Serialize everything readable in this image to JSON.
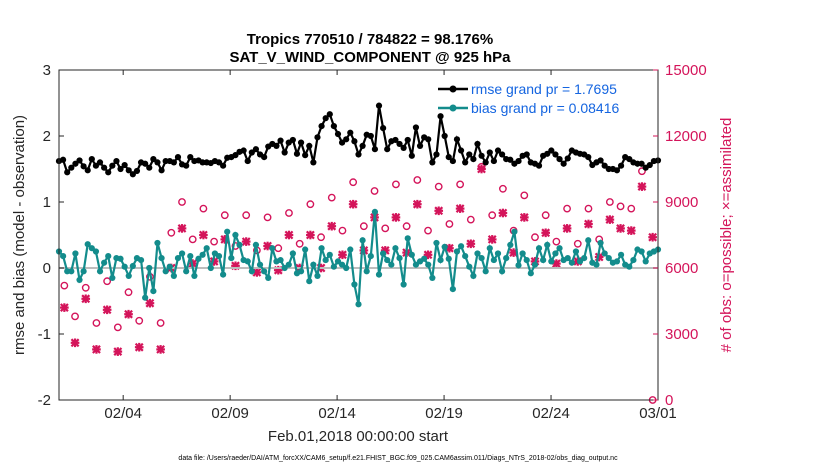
{
  "chart_data": {
    "type": "line",
    "title": "Tropics 770510 / 784822 = 98.176%",
    "subtitle": "SAT_V_WIND_COMPONENT @ 925 hPa",
    "xlabel": "Feb.01,2018 00:00:00 start",
    "ylabel": "rmse and bias (model - observation)",
    "ylabel_right": "# of obs: o=possible; ×=assimilated",
    "xlim": [
      1,
      29
    ],
    "ylim": [
      -2,
      3
    ],
    "ylim_right": [
      0,
      15000
    ],
    "x_tick_values": [
      4,
      9,
      14,
      19,
      24,
      29
    ],
    "x_tick_labels": [
      "02/04",
      "02/09",
      "02/14",
      "02/19",
      "02/24",
      "03/01"
    ],
    "y_ticks": [
      "-2",
      "-1",
      "0",
      "1",
      "2",
      "3"
    ],
    "y_ticks_right": [
      "0",
      "3000",
      "6000",
      "9000",
      "12000",
      "15000"
    ],
    "footnote": "data file: /Users/raeder/DAI/ATM_forcXX/CAM6_setup/f.e21.FHIST_BGC.f09_025.CAM6assim.011/Diags_NTrS_2018-02/obs_diag_output.nc",
    "legend": [
      "rmse grand pr = 1.7695",
      "bias grand pr = 0.08416"
    ],
    "series": [
      {
        "name": "rmse grand pr = 1.7695",
        "color": "#000000",
        "values": [
          1.62,
          1.64,
          1.45,
          1.52,
          1.58,
          1.63,
          1.54,
          1.48,
          1.65,
          1.55,
          1.6,
          1.52,
          1.45,
          1.55,
          1.62,
          1.5,
          1.56,
          1.48,
          1.42,
          1.47,
          1.6,
          1.58,
          1.52,
          1.65,
          1.6,
          1.48,
          1.62,
          1.62,
          1.6,
          1.68,
          1.57,
          1.55,
          1.68,
          1.62,
          1.63,
          1.6,
          1.6,
          1.59,
          1.62,
          1.6,
          1.55,
          1.67,
          1.68,
          1.71,
          1.76,
          1.78,
          1.62,
          1.75,
          1.8,
          1.72,
          1.68,
          1.84,
          1.88,
          1.85,
          1.93,
          1.75,
          1.9,
          1.94,
          1.73,
          1.9,
          1.71,
          1.85,
          1.6,
          1.98,
          2.15,
          2.27,
          2.33,
          2.15,
          2.03,
          1.9,
          1.95,
          2.05,
          1.92,
          1.72,
          1.85,
          2.02,
          2.0,
          1.8,
          2.46,
          2.12,
          1.8,
          1.92,
          1.94,
          1.88,
          1.82,
          1.94,
          1.7,
          2.13,
          1.85,
          1.98,
          1.95,
          1.6,
          1.72,
          2.3,
          2.0,
          1.68,
          1.62,
          1.95,
          1.78,
          1.6,
          1.72,
          1.65,
          1.88,
          1.7,
          1.6,
          1.75,
          1.62,
          1.78,
          1.72,
          1.65,
          1.64,
          1.58,
          1.62,
          1.7,
          1.72,
          1.6,
          1.58,
          1.55,
          1.7,
          1.73,
          1.78,
          1.72,
          1.65,
          1.58,
          1.66,
          1.78,
          1.75,
          1.73,
          1.72,
          1.68,
          1.56,
          1.6,
          1.63,
          1.55,
          1.5,
          1.5,
          1.48,
          1.55,
          1.68,
          1.65,
          1.6,
          1.58,
          1.58,
          1.52,
          1.56,
          1.62,
          1.63
        ]
      },
      {
        "name": "bias grand pr = 0.08416",
        "color": "#138c8c",
        "values": [
          0.25,
          0.18,
          -0.05,
          -0.05,
          0.22,
          -0.18,
          -0.05,
          0.36,
          0.3,
          0.25,
          -0.05,
          0.08,
          0.18,
          -0.15,
          0.15,
          0.14,
          0.02,
          -0.12,
          0.03,
          0.15,
          0.12,
          -0.45,
          0.0,
          -0.35,
          0.38,
          0.15,
          -0.05,
          0.02,
          -0.12,
          0.15,
          0.22,
          -0.05,
          0.18,
          -0.12,
          0.14,
          0.2,
          0.3,
          0.0,
          0.22,
          0.18,
          -0.1,
          0.55,
          0.15,
          0.5,
          0.35,
          0.12,
          0.1,
          -0.05,
          0.35,
          0.05,
          -0.05,
          -0.15,
          0.3,
          0.1,
          0.12,
          0.0,
          0.05,
          0.22,
          -0.08,
          -0.05,
          0.28,
          -0.2,
          0.05,
          -0.12,
          0.3,
          0.12,
          0.2,
          0.02,
          0.1,
          0.05,
          0.0,
          0.28,
          -0.25,
          -0.55,
          0.42,
          -0.05,
          0.18,
          0.85,
          -0.1,
          0.22,
          0.12,
          0.05,
          0.3,
          0.15,
          -0.25,
          0.45,
          0.2,
          0.05,
          0.1,
          0.14,
          0.05,
          -0.15,
          0.38,
          0.12,
          0.32,
          0.14,
          -0.32,
          0.25,
          0.33,
          0.18,
          0.02,
          -0.12,
          0.22,
          0.15,
          -0.05,
          0.3,
          0.12,
          0.22,
          -0.05,
          0.15,
          0.35,
          0.55,
          0.04,
          0.22,
          0.12,
          -0.08,
          0.05,
          0.3,
          0.12,
          0.35,
          0.1,
          0.22,
          0.3,
          0.12,
          0.15,
          0.08,
          0.25,
          0.1,
          0.15,
          0.42,
          0.08,
          0.05,
          0.38,
          0.22,
          0.15,
          0.08,
          0.1,
          0.2,
          0.05,
          0.02,
          0.12,
          0.28,
          0.25,
          0.1,
          0.22,
          0.25,
          0.28
        ]
      }
    ],
    "obs_series": [
      {
        "name": "possible",
        "axis": "right",
        "color": "#d4145a",
        "x": [
          1.25,
          1.75,
          2.25,
          2.75,
          3.25,
          3.75,
          4.25,
          4.75,
          5.25,
          5.75,
          6.25,
          6.75,
          7.25,
          7.75,
          8.25,
          8.75,
          9.25,
          9.75,
          10.25,
          10.75,
          11.25,
          11.75,
          12.25,
          12.75,
          13.25,
          13.75,
          14.25,
          14.75,
          15.25,
          15.75,
          16.25,
          16.75,
          17.25,
          17.75,
          18.25,
          18.75,
          19.25,
          19.75,
          20.25,
          20.75,
          21.25,
          21.75,
          22.25,
          22.75,
          23.25,
          23.75,
          24.25,
          24.75,
          25.25,
          25.75,
          26.25,
          26.75,
          27.25,
          27.75,
          28.25,
          28.75
        ],
        "values": [
          5200,
          3800,
          5100,
          3500,
          5400,
          3300,
          4900,
          3600,
          5600,
          3500,
          7600,
          9000,
          7300,
          8700,
          7200,
          8400,
          7000,
          8400,
          6800,
          8300,
          6900,
          8500,
          7100,
          8900,
          7400,
          9200,
          7700,
          9900,
          7900,
          9500,
          7800,
          9800,
          7900,
          10000,
          7700,
          9700,
          8000,
          9800,
          8200,
          10600,
          8400,
          9600,
          7700,
          9300,
          7400,
          8400,
          7200,
          8700,
          7100,
          8700,
          7300,
          9000,
          8800,
          8700,
          10400,
          0
        ]
      },
      {
        "name": "assimilated",
        "axis": "right",
        "color": "#d4145a",
        "x": [
          1.25,
          1.75,
          2.25,
          2.75,
          3.25,
          3.75,
          4.25,
          4.75,
          5.25,
          5.75,
          6.25,
          6.75,
          7.25,
          7.75,
          8.25,
          8.75,
          9.25,
          9.75,
          10.25,
          10.75,
          11.25,
          11.75,
          12.25,
          12.75,
          13.25,
          13.75,
          14.25,
          14.75,
          15.25,
          15.75,
          16.25,
          16.75,
          17.25,
          17.75,
          18.25,
          18.75,
          19.25,
          19.75,
          20.25,
          20.75,
          21.25,
          21.75,
          22.25,
          22.75,
          23.25,
          23.75,
          24.25,
          24.75,
          25.25,
          25.75,
          26.25,
          26.75,
          27.25,
          27.75,
          28.25,
          28.75
        ],
        "values": [
          4200,
          2600,
          4600,
          2300,
          4100,
          2200,
          3900,
          2400,
          4400,
          2300,
          6000,
          7800,
          6200,
          7500,
          6300,
          7300,
          6100,
          7200,
          5800,
          7000,
          5900,
          7500,
          6000,
          7500,
          6000,
          7900,
          6600,
          8900,
          6800,
          8300,
          6800,
          8300,
          6700,
          8900,
          6600,
          8600,
          6900,
          8700,
          7100,
          10500,
          7300,
          8500,
          6700,
          8300,
          6300,
          7600,
          6200,
          7800,
          6300,
          8000,
          6500,
          8200,
          7800,
          7700,
          9700,
          7400
        ]
      }
    ]
  }
}
